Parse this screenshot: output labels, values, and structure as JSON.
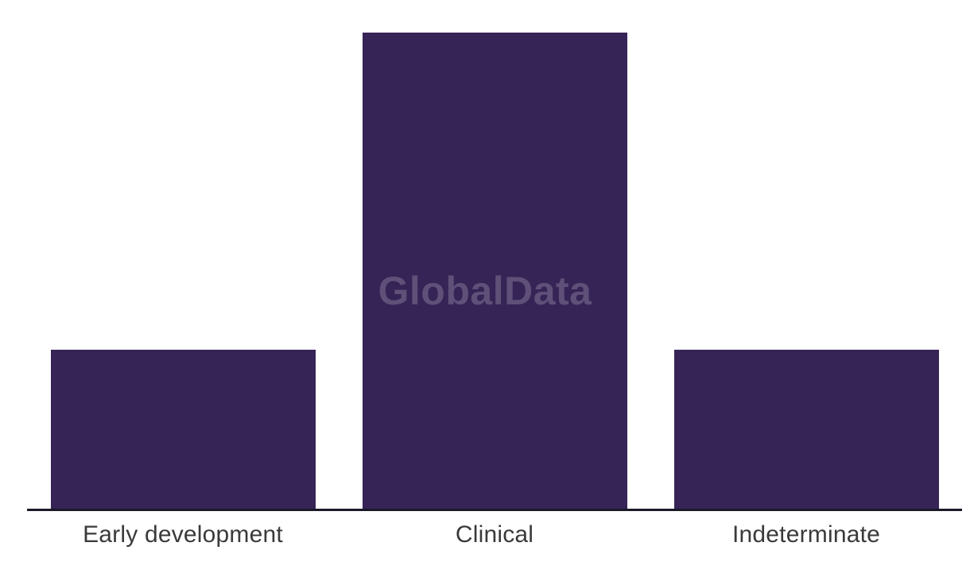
{
  "watermark": {
    "text": "GlobalData",
    "color": "#5E5078"
  },
  "colors": {
    "background": "#FFFFFF",
    "bar": "#362456",
    "axis_line": "#1A1A28",
    "label_text": "#3A3A3A"
  },
  "chart_data": {
    "type": "bar",
    "title": "",
    "xlabel": "",
    "ylabel": "",
    "categories": [
      "Early development",
      "Clinical",
      "Indeterminate"
    ],
    "values": [
      1,
      3,
      1
    ],
    "ylim": [
      0,
      3
    ],
    "grid": false,
    "legend": false,
    "value_axis_shown": false,
    "bar_color": "#362456",
    "note": "No numeric axis or data labels shown; bar heights are in ratio approximately 1 : 3 : 1"
  }
}
